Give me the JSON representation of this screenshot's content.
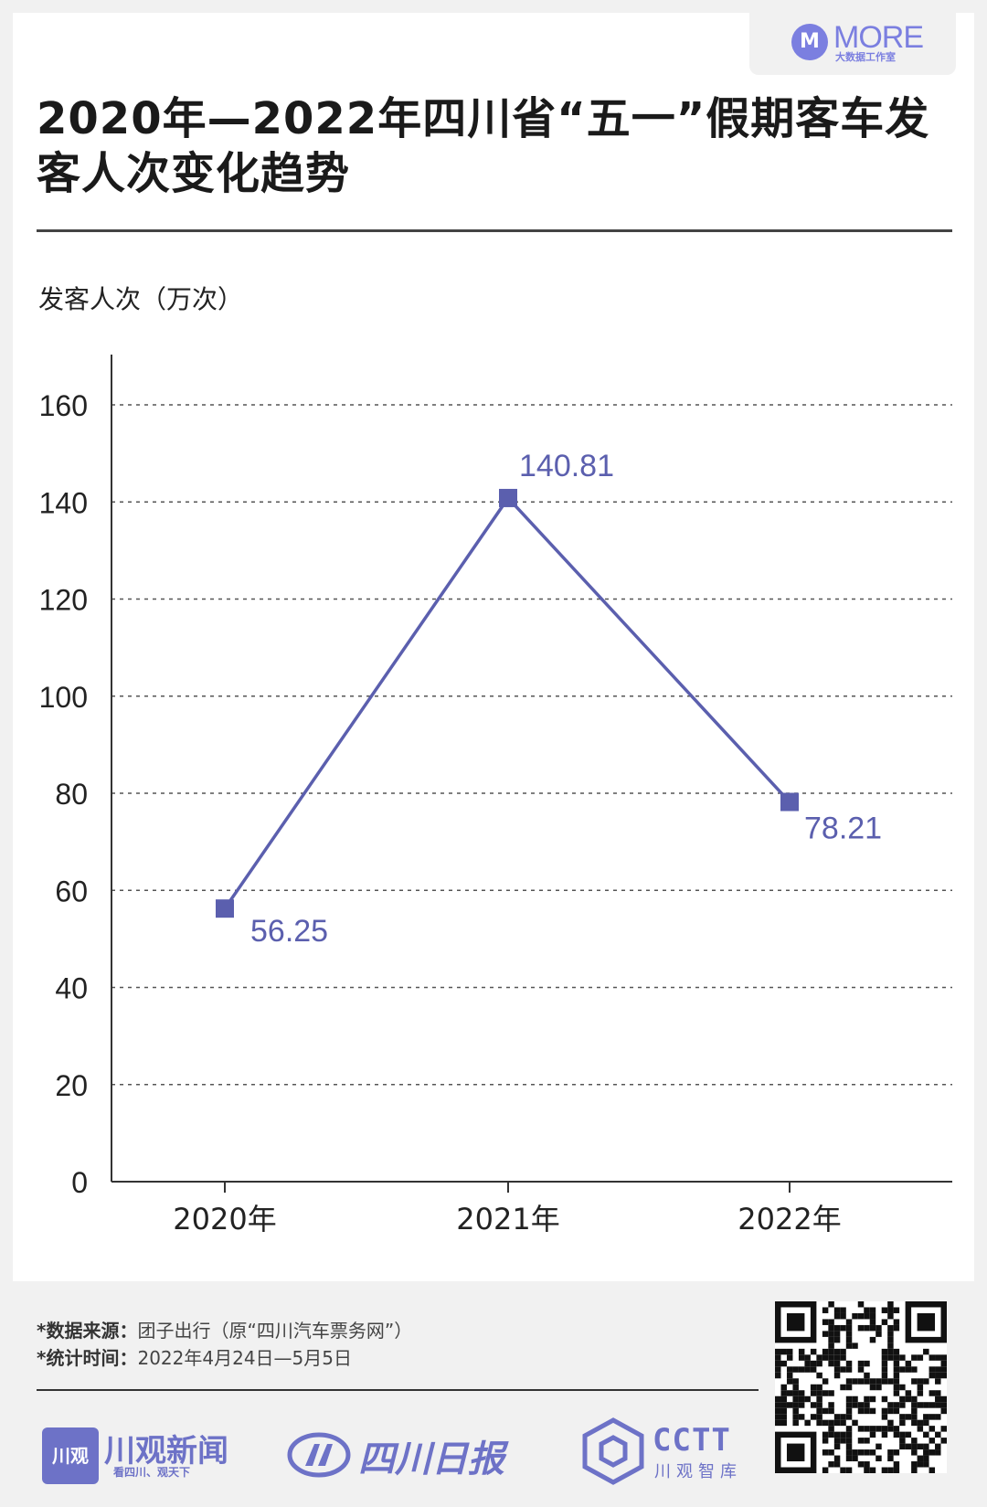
{
  "header": {
    "logo_word": "MORE",
    "logo_sub": "大数据工作室",
    "title": "2020年—2022年四川省“五一”假期客车发客人次变化趋势"
  },
  "chart_data": {
    "type": "line",
    "title": "2020年—2022年四川省“五一”假期客车发客人次变化趋势",
    "ylabel": "发客人次（万次）",
    "xlabel": "",
    "categories": [
      "2020年",
      "2021年",
      "2022年"
    ],
    "series": [
      {
        "values": [
          56.25,
          140.81,
          78.21
        ]
      }
    ],
    "data_labels": [
      "56.25",
      "140.81",
      "78.21"
    ],
    "ylim": [
      0,
      160
    ],
    "yticks": [
      0,
      20,
      40,
      60,
      80,
      100,
      120,
      140,
      160
    ],
    "grid": "horizontal dashed",
    "color": "#5b5fae"
  },
  "footer": {
    "source_label": "*数据来源：",
    "source_text": "团子出行（原“四川汽车票务网”）",
    "time_label": "*统计时间：",
    "time_text": "2022年4月24日—5月5日"
  },
  "brands": {
    "b1_box": "川观",
    "b1_name": "川观新闻",
    "b1_slogan": "看四川、观天下",
    "b2_name": "四川日报",
    "b3_name": "CCTT",
    "b3_sub": "川观智库"
  },
  "colors": {
    "accent": "#5b5fae",
    "brand": "#6d72c7"
  }
}
